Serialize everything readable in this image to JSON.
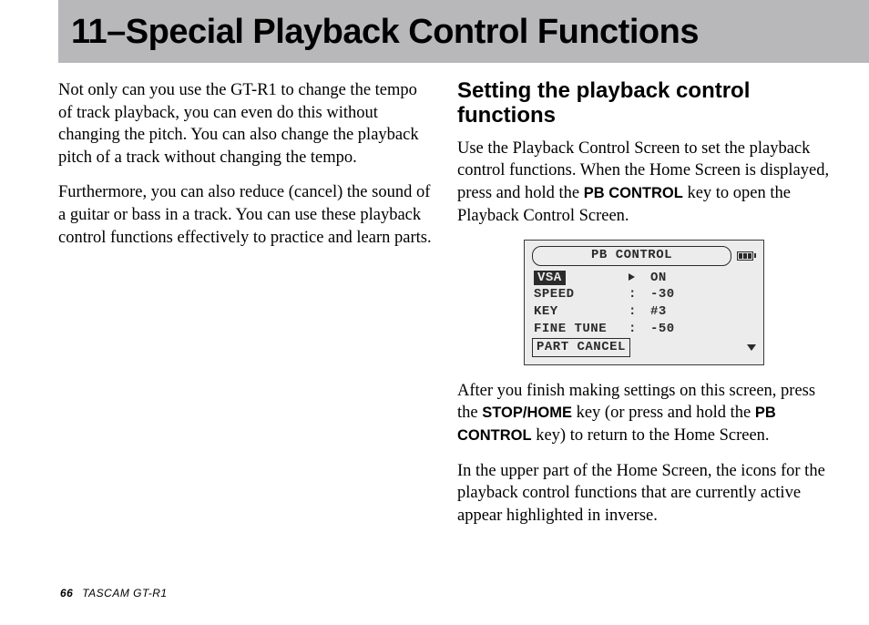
{
  "header": {
    "title": "11–Special Playback Control Functions"
  },
  "leftCol": {
    "p1": "Not only can you use the GT-R1 to change the tempo of track playback, you can even do this without changing the pitch. You can also change the playback pitch of a track without changing the tempo.",
    "p2": "Furthermore, you can also reduce (cancel) the sound of a guitar or bass in a track. You can use these playback control functions effectively to practice and learn parts."
  },
  "rightCol": {
    "heading": "Setting the playback control functions",
    "p1a": "Use the Playback Control Screen to set the play­back control functions. When the Home Screen is displayed, press and hold the ",
    "key1": "PB CONTROL",
    "p1b": " key to open the Playback Control Screen.",
    "p2a": "After you finish making settings on this screen, press the ",
    "key2": "STOP/HOME",
    "p2b": " key (or press and hold the ",
    "key3": "PB CONTROL",
    "p2c": " key) to return to the Home Screen.",
    "p3": "In the upper part of the Home Screen, the icons for the playback control functions that are currently active appear highlighted in inverse."
  },
  "lcd": {
    "title": "PB CONTROL",
    "rows": [
      {
        "label": "VSA",
        "sep": "arrow",
        "value": "ON",
        "highlight": true
      },
      {
        "label": "SPEED",
        "sep": ":",
        "value": "-30"
      },
      {
        "label": "KEY",
        "sep": ":",
        "value": "#3"
      },
      {
        "label": "FINE TUNE",
        "sep": ":",
        "value": "-50"
      }
    ],
    "bottomRow": "PART CANCEL"
  },
  "footer": {
    "page": "66",
    "product": "TASCAM  GT-R1"
  },
  "colors": {
    "headerBg": "#b8b8ba",
    "lcdBg": "#ececec",
    "lcdInk": "#2b2b2b"
  }
}
